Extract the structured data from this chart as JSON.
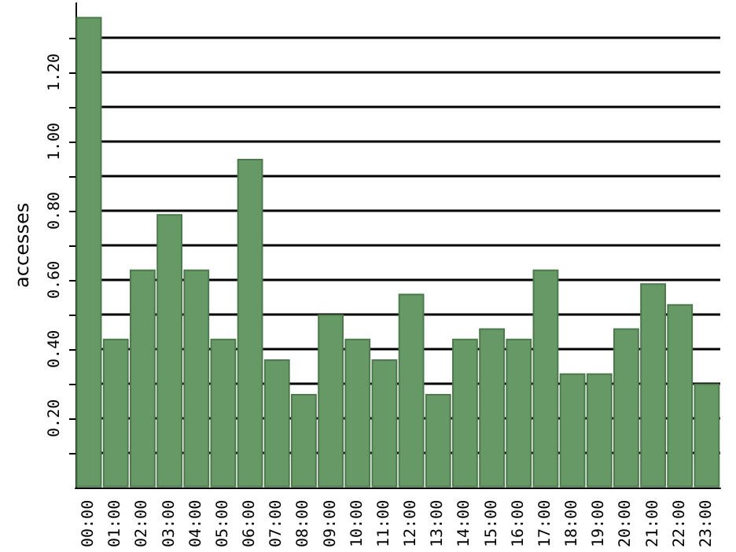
{
  "chart_data": {
    "type": "bar",
    "ylabel": "accesses",
    "categories": [
      "00:00",
      "01:00",
      "02:00",
      "03:00",
      "04:00",
      "05:00",
      "06:00",
      "07:00",
      "08:00",
      "09:00",
      "10:00",
      "11:00",
      "12:00",
      "13:00",
      "14:00",
      "15:00",
      "16:00",
      "17:00",
      "18:00",
      "19:00",
      "20:00",
      "21:00",
      "22:00",
      "23:00"
    ],
    "values": [
      1.36,
      0.43,
      0.63,
      0.79,
      0.63,
      0.43,
      0.95,
      0.37,
      0.27,
      0.5,
      0.43,
      0.37,
      0.56,
      0.27,
      0.43,
      0.46,
      0.43,
      0.63,
      0.33,
      0.33,
      0.46,
      0.59,
      0.53,
      0.3
    ],
    "color": "#669966",
    "ylim": [
      0,
      1.4
    ],
    "yticks": [
      {
        "value": 0.1,
        "label": null
      },
      {
        "value": 0.2,
        "label": "0.20"
      },
      {
        "value": 0.3,
        "label": null
      },
      {
        "value": 0.4,
        "label": "0.40"
      },
      {
        "value": 0.5,
        "label": null
      },
      {
        "value": 0.6,
        "label": "0.60"
      },
      {
        "value": 0.7,
        "label": null
      },
      {
        "value": 0.8,
        "label": "0.80"
      },
      {
        "value": 0.9,
        "label": null
      },
      {
        "value": 1.0,
        "label": "1.00"
      },
      {
        "value": 1.1,
        "label": null
      },
      {
        "value": 1.2,
        "label": "1.20"
      },
      {
        "value": 1.3,
        "label": null
      }
    ],
    "grid": true
  }
}
